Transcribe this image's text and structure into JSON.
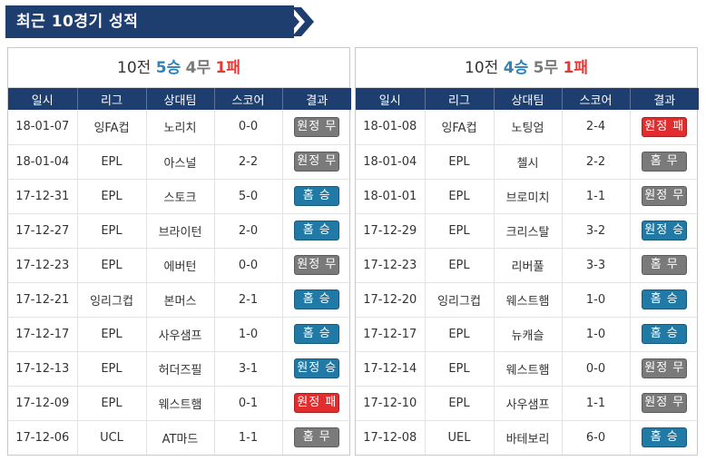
{
  "header": {
    "title": "최근 10경기 성적"
  },
  "colors": {
    "header_bg": "#1d3e6e",
    "win": "#2179a6",
    "draw": "#7a7a7a",
    "loss": "#e12d2d"
  },
  "columns": [
    "일시",
    "리그",
    "상대팀",
    "스코어",
    "결과"
  ],
  "panels": [
    {
      "summary": {
        "games": "10전",
        "wins": "5승",
        "draws": "4무",
        "losses": "1패"
      },
      "rows": [
        {
          "date": "18-01-07",
          "league": "잉FA컵",
          "opponent": "노리치",
          "score": "0-0",
          "result": "원정 무",
          "type": "away-draw"
        },
        {
          "date": "18-01-04",
          "league": "EPL",
          "opponent": "아스널",
          "score": "2-2",
          "result": "원정 무",
          "type": "away-draw"
        },
        {
          "date": "17-12-31",
          "league": "EPL",
          "opponent": "스토크",
          "score": "5-0",
          "result": "홈 승",
          "type": "home-win"
        },
        {
          "date": "17-12-27",
          "league": "EPL",
          "opponent": "브라이턴",
          "score": "2-0",
          "result": "홈 승",
          "type": "home-win"
        },
        {
          "date": "17-12-23",
          "league": "EPL",
          "opponent": "에버턴",
          "score": "0-0",
          "result": "원정 무",
          "type": "away-draw"
        },
        {
          "date": "17-12-21",
          "league": "잉리그컵",
          "opponent": "본머스",
          "score": "2-1",
          "result": "홈 승",
          "type": "home-win"
        },
        {
          "date": "17-12-17",
          "league": "EPL",
          "opponent": "사우샘프",
          "score": "1-0",
          "result": "홈 승",
          "type": "home-win"
        },
        {
          "date": "17-12-13",
          "league": "EPL",
          "opponent": "허더즈필",
          "score": "3-1",
          "result": "원정 승",
          "type": "away-win"
        },
        {
          "date": "17-12-09",
          "league": "EPL",
          "opponent": "웨스트햄",
          "score": "0-1",
          "result": "원정 패",
          "type": "away-loss"
        },
        {
          "date": "17-12-06",
          "league": "UCL",
          "opponent": "AT마드",
          "score": "1-1",
          "result": "홈 무",
          "type": "home-draw"
        }
      ]
    },
    {
      "summary": {
        "games": "10전",
        "wins": "4승",
        "draws": "5무",
        "losses": "1패"
      },
      "rows": [
        {
          "date": "18-01-08",
          "league": "잉FA컵",
          "opponent": "노팅엄",
          "score": "2-4",
          "result": "원정 패",
          "type": "away-loss"
        },
        {
          "date": "18-01-04",
          "league": "EPL",
          "opponent": "첼시",
          "score": "2-2",
          "result": "홈 무",
          "type": "home-draw"
        },
        {
          "date": "18-01-01",
          "league": "EPL",
          "opponent": "브로미치",
          "score": "1-1",
          "result": "원정 무",
          "type": "away-draw"
        },
        {
          "date": "17-12-29",
          "league": "EPL",
          "opponent": "크리스탈",
          "score": "3-2",
          "result": "원정 승",
          "type": "away-win"
        },
        {
          "date": "17-12-23",
          "league": "EPL",
          "opponent": "리버풀",
          "score": "3-3",
          "result": "홈 무",
          "type": "home-draw"
        },
        {
          "date": "17-12-20",
          "league": "잉리그컵",
          "opponent": "웨스트햄",
          "score": "1-0",
          "result": "홈 승",
          "type": "home-win"
        },
        {
          "date": "17-12-17",
          "league": "EPL",
          "opponent": "뉴캐슬",
          "score": "1-0",
          "result": "홈 승",
          "type": "home-win"
        },
        {
          "date": "17-12-14",
          "league": "EPL",
          "opponent": "웨스트햄",
          "score": "0-0",
          "result": "원정 무",
          "type": "away-draw"
        },
        {
          "date": "17-12-10",
          "league": "EPL",
          "opponent": "사우샘프",
          "score": "1-1",
          "result": "원정 무",
          "type": "away-draw"
        },
        {
          "date": "17-12-08",
          "league": "UEL",
          "opponent": "바테보리",
          "score": "6-0",
          "result": "홈 승",
          "type": "home-win"
        }
      ]
    }
  ]
}
